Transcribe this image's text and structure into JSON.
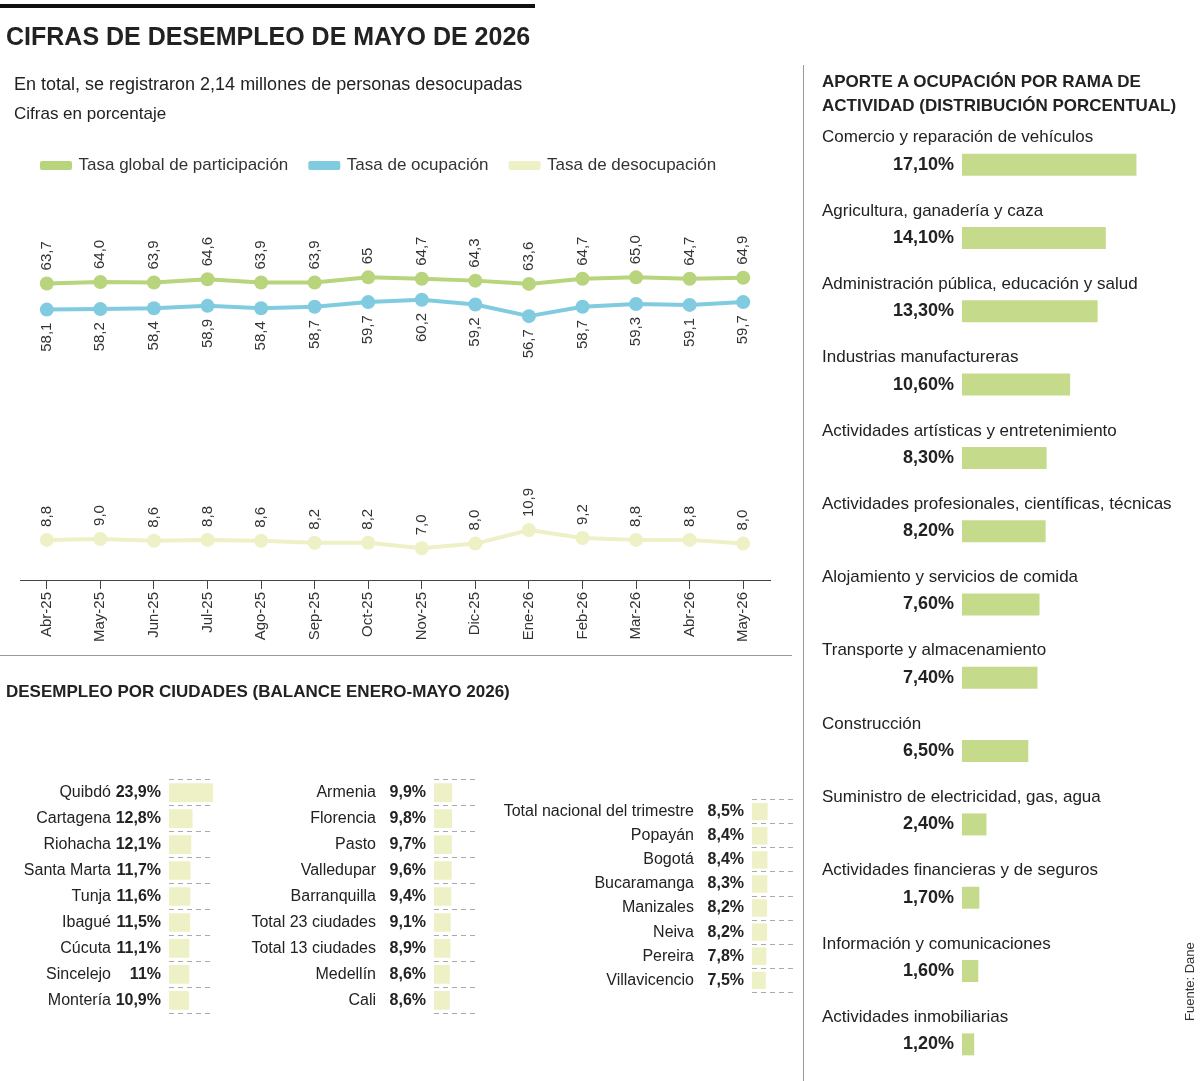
{
  "chart_data": [
    {
      "type": "line",
      "title": "CIFRAS DE DESEMPLEO DE MAYO DE 2026",
      "subtitle": "En total, se registraron 2,14 millones de personas desocupadas",
      "annotations": [
        "Cifras en porcentaje"
      ],
      "categories": [
        "Abr-25",
        "May-25",
        "Jun-25",
        "Jul-25",
        "Ago-25",
        "Sep-25",
        "Oct-25",
        "Nov-25",
        "Dic-25",
        "Ene-26",
        "Feb-26",
        "Mar-26",
        "Abr-26",
        "May-26"
      ],
      "series": [
        {
          "name": "Tasa global de participación",
          "color": "#b8d47c",
          "values": [
            63.7,
            64.0,
            63.9,
            64.6,
            63.9,
            63.9,
            65,
            64.7,
            64.3,
            63.6,
            64.7,
            65.0,
            64.7,
            64.9
          ],
          "value_labels": [
            "63,7",
            "64,0",
            "63,9",
            "64,6",
            "63,9",
            "63,9",
            "65",
            "64,7",
            "64,3",
            "63,6",
            "64,7",
            "65,0",
            "64,7",
            "64,9"
          ]
        },
        {
          "name": "Tasa de ocupación",
          "color": "#80cbe0",
          "values": [
            58.1,
            58.2,
            58.4,
            58.9,
            58.4,
            58.7,
            59.7,
            60.2,
            59.2,
            56.7,
            58.7,
            59.3,
            59.1,
            59.7
          ],
          "value_labels": [
            "58,1",
            "58,2",
            "58,4",
            "58,9",
            "58,4",
            "58,7",
            "59,7",
            "60,2",
            "59,2",
            "56,7",
            "58,7",
            "59,3",
            "59,1",
            "59,7"
          ]
        },
        {
          "name": "Tasa de desocupación",
          "color": "#eef0c6",
          "values": [
            8.8,
            9.0,
            8.6,
            8.8,
            8.6,
            8.2,
            8.2,
            7.0,
            8.0,
            10.9,
            9.2,
            8.8,
            8.8,
            8.0
          ],
          "value_labels": [
            "8,8",
            "9,0",
            "8,6",
            "8,8",
            "8,6",
            "8,2",
            "8,2",
            "7,0",
            "8,0",
            "10,9",
            "9,2",
            "8,8",
            "8,8",
            "8,0"
          ]
        }
      ],
      "legend": "top left",
      "marker": "circle",
      "line_style": "solid",
      "grid": false
    },
    {
      "type": "bar",
      "orientation": "horizontal",
      "title": "DESEMPLEO POR CIUDADES (BALANCE ENERO-MAYO 2026)",
      "categories": [
        "Quibdó",
        "Cartagena",
        "Riohacha",
        "Santa Marta",
        "Tunja",
        "Ibagué",
        "Cúcuta",
        "Sincelejo",
        "Montería"
      ],
      "values": [
        23.9,
        12.8,
        12.1,
        11.7,
        11.6,
        11.5,
        11.1,
        11,
        10.9
      ],
      "value_labels": [
        "23,9%",
        "12,8%",
        "12,1%",
        "11,7%",
        "11,6%",
        "11,5%",
        "11,1%",
        "11%",
        "10,9%"
      ],
      "color": "#eef0c6",
      "grid": "y"
    },
    {
      "type": "bar",
      "orientation": "horizontal",
      "categories": [
        "Armenia",
        "Florencia",
        "Pasto",
        "Valledupar",
        "Barranquilla",
        "Total 23 ciudades",
        "Total 13 ciudades",
        "Medellín",
        "Cali"
      ],
      "values": [
        9.9,
        9.8,
        9.7,
        9.6,
        9.4,
        9.1,
        8.9,
        8.6,
        8.6
      ],
      "value_labels": [
        "9,9%",
        "9,8%",
        "9,7%",
        "9,6%",
        "9,4%",
        "9,1%",
        "8,9%",
        "8,6%",
        "8,6%"
      ],
      "color": "#eef0c6",
      "grid": "y"
    },
    {
      "type": "bar",
      "orientation": "horizontal",
      "categories": [
        "Total nacional del trimestre",
        "Popayán",
        "Bogotá",
        "Bucaramanga",
        "Manizales",
        "Neiva",
        "Pereira",
        "Villavicencio"
      ],
      "values": [
        8.5,
        8.4,
        8.4,
        8.3,
        8.2,
        8.2,
        7.8,
        7.5
      ],
      "value_labels": [
        "8,5%",
        "8,4%",
        "8,4%",
        "8,3%",
        "8,2%",
        "8,2%",
        "7,8%",
        "7,5%"
      ],
      "color": "#eef0c6",
      "grid": "y"
    },
    {
      "type": "bar",
      "orientation": "horizontal",
      "title": "APORTE A OCUPACIÓN POR RAMA DE ACTIVIDAD (DISTRIBUCIÓN PORCENTUAL)",
      "categories": [
        "Comercio y reparación de vehículos",
        "Agricultura, ganadería y caza",
        "Administración pública, educación y salud",
        "Industrias manufactureras",
        "Actividades artísticas y entretenimiento",
        "Actividades profesionales, científicas, técnicas",
        "Alojamiento y servicios de comida",
        "Transporte y almacenamiento",
        "Construcción",
        "Suministro de electricidad, gas, agua",
        "Actividades financieras y de seguros",
        "Información y comunicaciones",
        "Actividades inmobiliarias"
      ],
      "values": [
        17.1,
        14.1,
        13.3,
        10.6,
        8.3,
        8.2,
        7.6,
        7.4,
        6.5,
        2.4,
        1.7,
        1.6,
        1.2
      ],
      "value_labels": [
        "17,10%",
        "14,10%",
        "13,30%",
        "10,60%",
        "8,30%",
        "8,20%",
        "7,60%",
        "7,40%",
        "6,50%",
        "2,40%",
        "1,70%",
        "1,60%",
        "1,20%"
      ],
      "color": "#c5db8b",
      "annotations": [
        "Fuente: Dane"
      ]
    }
  ]
}
